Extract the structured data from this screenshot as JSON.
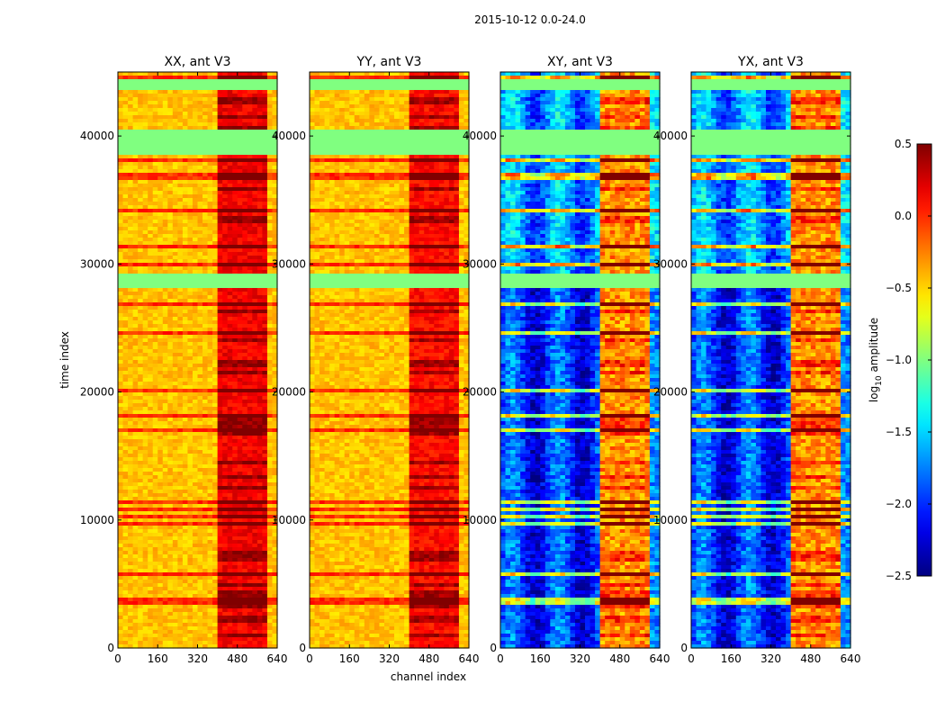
{
  "chart_data": {
    "type": "heatmap",
    "suptitle": "2015-10-12 0.0-24.0",
    "xlabel": "channel index",
    "ylabel": "time index",
    "xlim": [
      0,
      640
    ],
    "ylim": [
      0,
      45000
    ],
    "xticks": [
      "0",
      "160",
      "320",
      "480",
      "640"
    ],
    "yticks": [
      "0",
      "10000",
      "20000",
      "30000",
      "40000"
    ],
    "colormap": "jet",
    "colorbar": {
      "label_prefix": "log",
      "label_sub": "10",
      "label_suffix": " amplitude",
      "range": [
        -2.5,
        0.5
      ],
      "ticks": [
        "0.5",
        "0.0",
        "−0.5",
        "−1.0",
        "−1.5",
        "−2.0",
        "−2.5"
      ]
    },
    "flagged_bands_time": [
      [
        28000,
        29300
      ],
      [
        38600,
        40500
      ],
      [
        43700,
        44500
      ]
    ],
    "panels": [
      {
        "title": "XX, ant V3",
        "base_level": -0.45,
        "rfi_level": 0.15
      },
      {
        "title": "YY, ant V3",
        "base_level": -0.45,
        "rfi_level": 0.1
      },
      {
        "title": "XY, ant V3",
        "base_level": -1.7,
        "rfi_level": -0.3
      },
      {
        "title": "YX, ant V3",
        "base_level": -1.7,
        "rfi_level": -0.3
      }
    ]
  }
}
